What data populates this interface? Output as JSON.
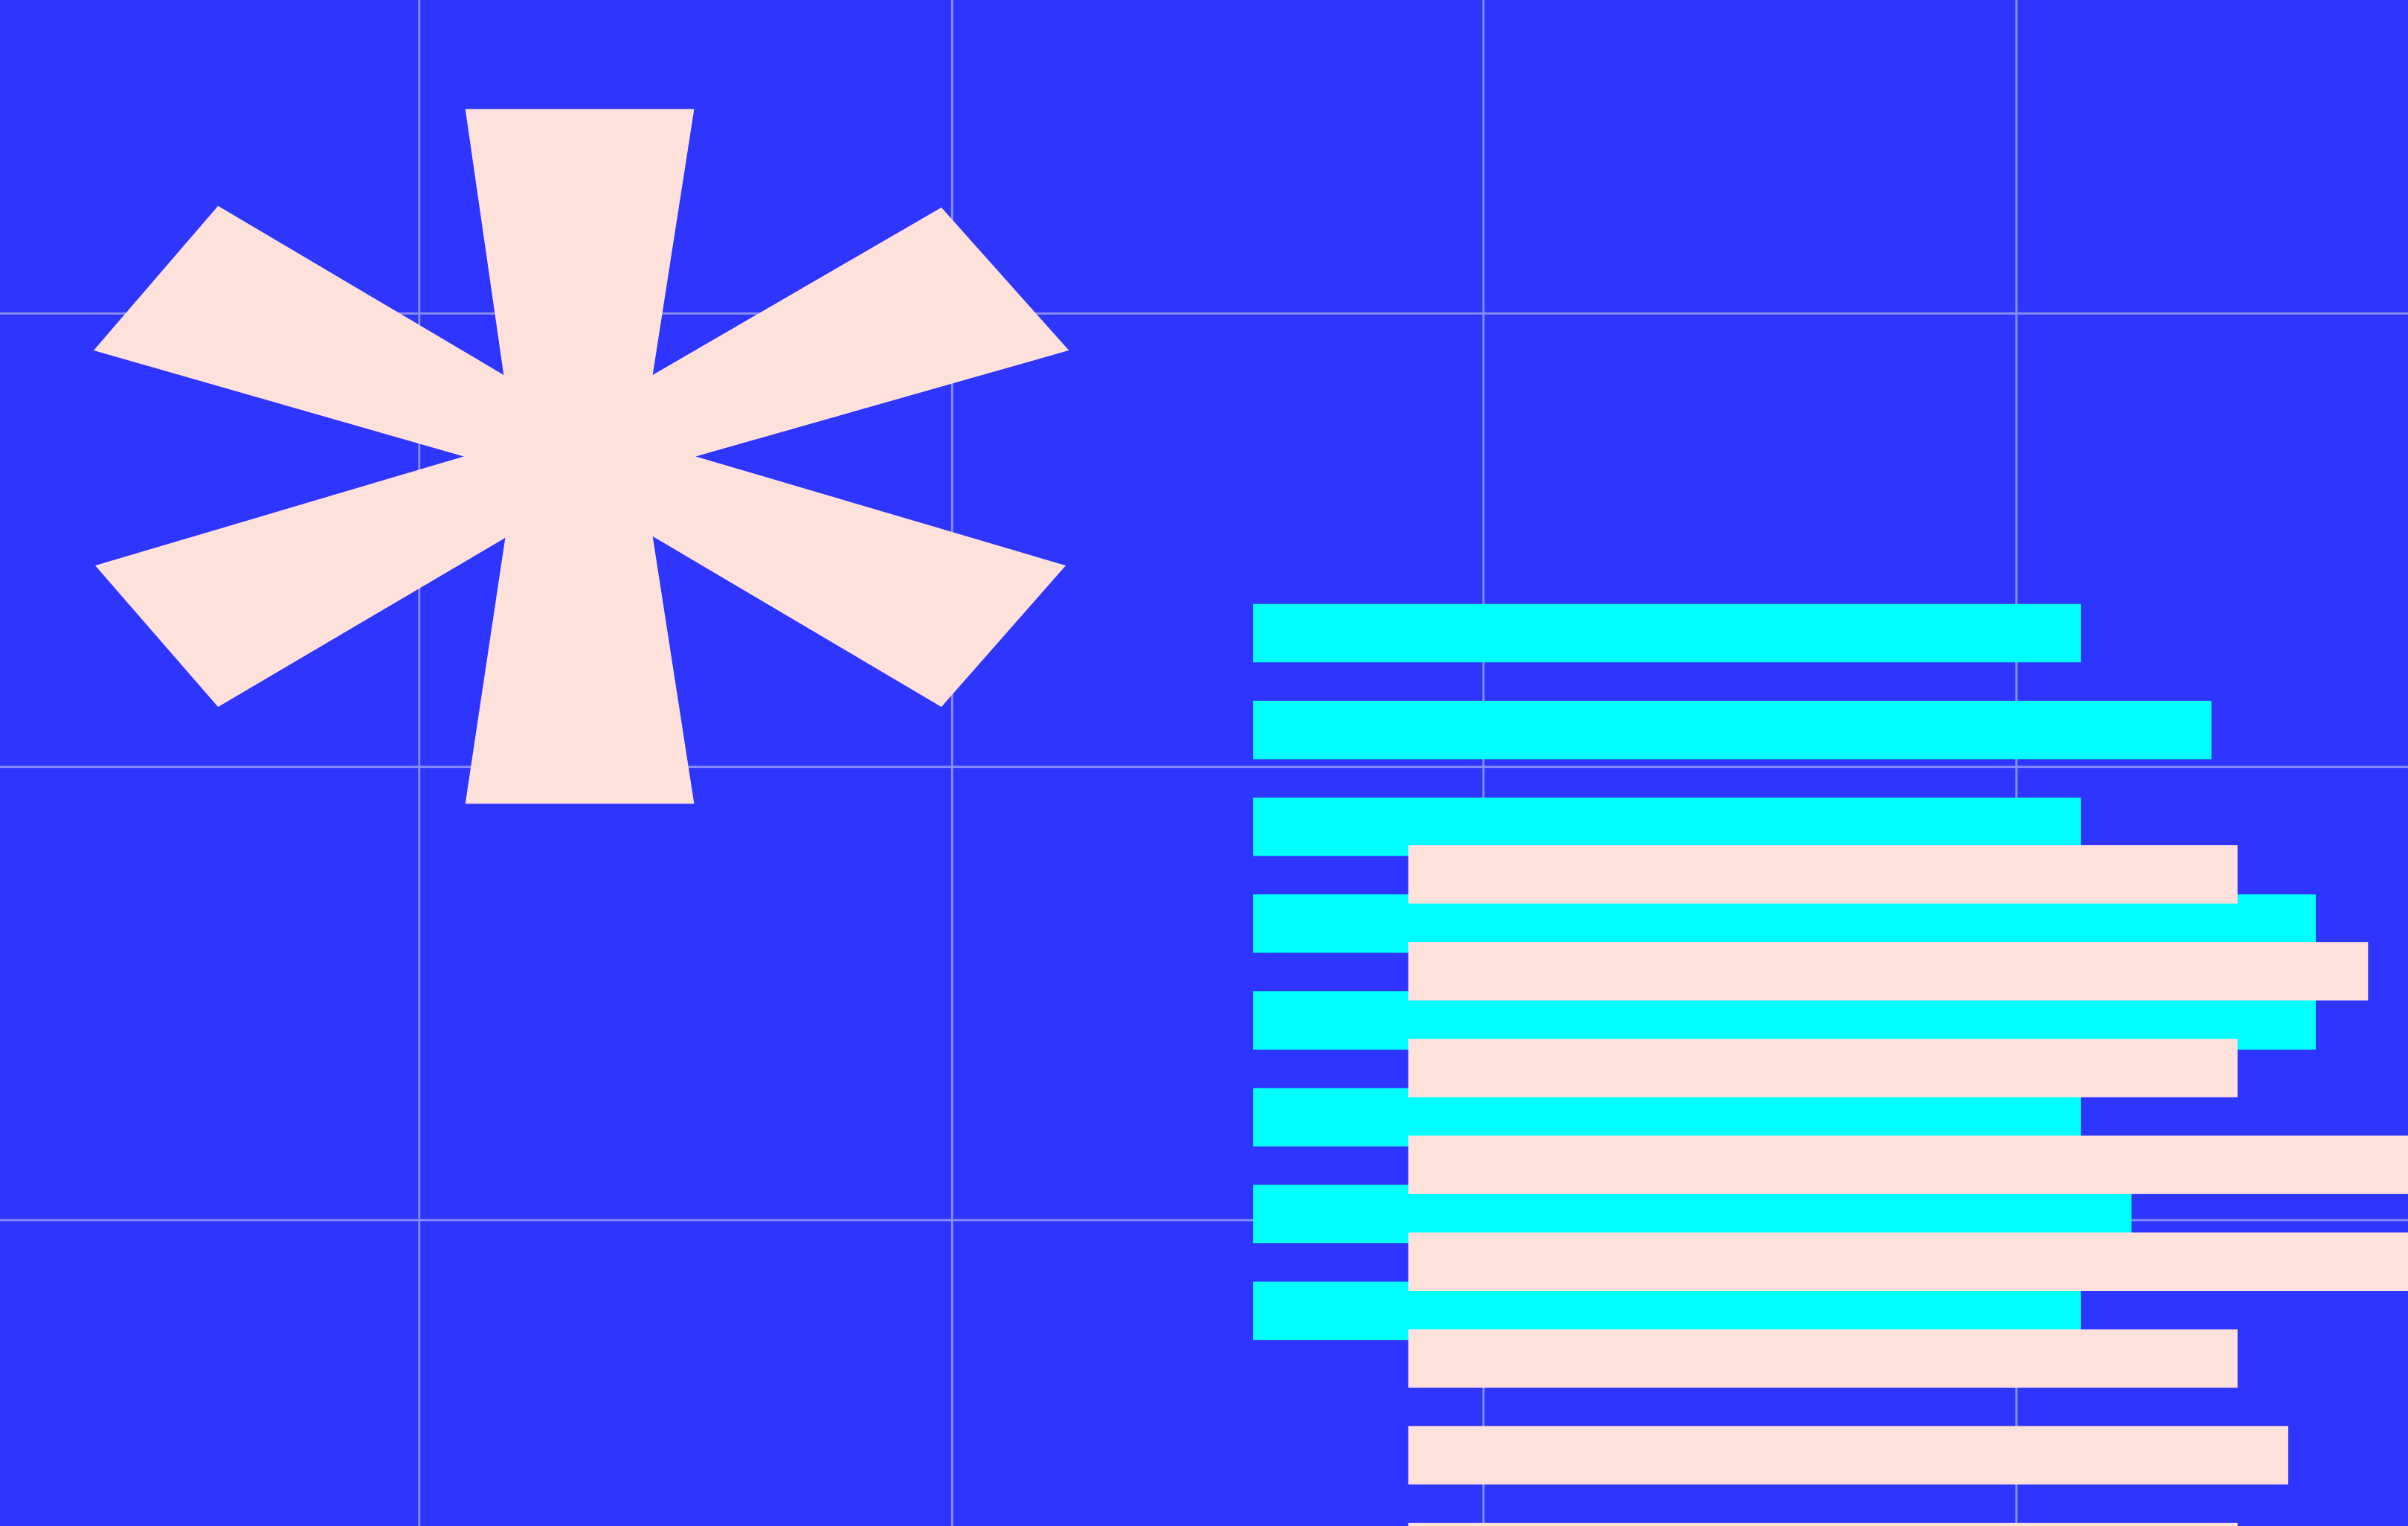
{
  "colors": {
    "background": "#2E35FF",
    "grid": "#8A8EFF",
    "asterisk": "#FFE1DC",
    "cyan_bars": "#00FFFF",
    "pink_bars": "#FFE1DC"
  },
  "icons": {
    "main": "asterisk-icon"
  }
}
